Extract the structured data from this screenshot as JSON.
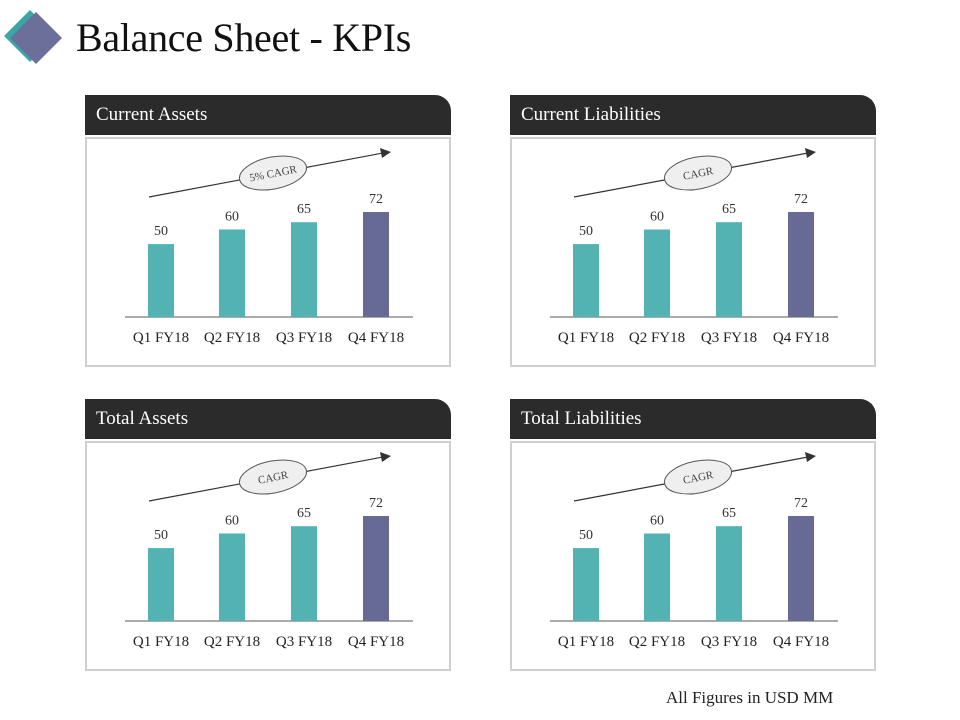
{
  "title": "Balance Sheet - KPIs",
  "footnote": "All Figures in USD MM",
  "colors": {
    "bar": "#52b3b2",
    "bar_highlight": "#666a94",
    "header_bg": "#2b2b2b",
    "logo_front": "#6c6f99",
    "logo_back": "#3aa7a6"
  },
  "chart_data": [
    {
      "type": "bar",
      "title": "Current Assets",
      "categories": [
        "Q1 FY18",
        "Q2 FY18",
        "Q3 FY18",
        "Q4 FY18"
      ],
      "values": [
        50,
        60,
        65,
        72
      ],
      "annotation": "5% CAGR",
      "ylim": [
        0,
        72
      ]
    },
    {
      "type": "bar",
      "title": "Current Liabilities",
      "categories": [
        "Q1 FY18",
        "Q2 FY18",
        "Q3 FY18",
        "Q4 FY18"
      ],
      "values": [
        50,
        60,
        65,
        72
      ],
      "annotation": "CAGR",
      "ylim": [
        0,
        72
      ]
    },
    {
      "type": "bar",
      "title": "Total Assets",
      "categories": [
        "Q1 FY18",
        "Q2 FY18",
        "Q3 FY18",
        "Q4 FY18"
      ],
      "values": [
        50,
        60,
        65,
        72
      ],
      "annotation": "CAGR",
      "ylim": [
        0,
        72
      ]
    },
    {
      "type": "bar",
      "title": "Total Liabilities",
      "categories": [
        "Q1 FY18",
        "Q2 FY18",
        "Q3 FY18",
        "Q4 FY18"
      ],
      "values": [
        50,
        60,
        65,
        72
      ],
      "annotation": "CAGR",
      "ylim": [
        0,
        72
      ]
    }
  ]
}
